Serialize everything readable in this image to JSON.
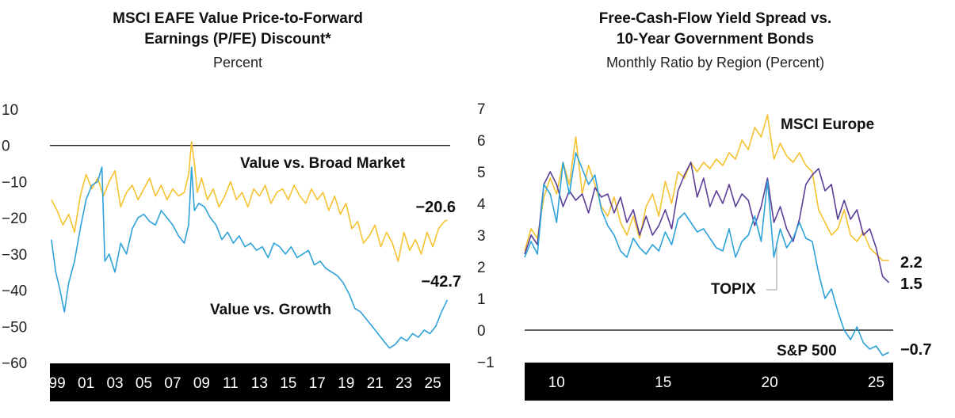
{
  "colors": {
    "gold": "#f5c231",
    "blue": "#2ea2d8",
    "purple": "#5b3f98",
    "axis": "#000000"
  },
  "chart_data": [
    {
      "type": "line",
      "title_line1": "MSCI EAFE Value Price-to-Forward",
      "title_line2": "Earnings (P/FE) Discount*",
      "subtitle": "Percent",
      "ylim": [
        -60,
        10
      ],
      "yticks": [
        10,
        0,
        -10,
        -20,
        -30,
        -40,
        -50,
        -60
      ],
      "ytick_labels": [
        "10",
        "0",
        "−10",
        "−20",
        "−30",
        "−40",
        "−50",
        "−60"
      ],
      "xlim": [
        1998.5,
        2026.2
      ],
      "xticks": [
        1999,
        2001,
        2003,
        2005,
        2007,
        2009,
        2011,
        2013,
        2015,
        2017,
        2019,
        2021,
        2023,
        2025
      ],
      "xtick_labels": [
        "99",
        "01",
        "03",
        "05",
        "07",
        "09",
        "11",
        "13",
        "15",
        "17",
        "19",
        "21",
        "23",
        "25"
      ],
      "series": [
        {
          "name": "Value vs. Broad Market",
          "color": "#f5c231",
          "end_label": "−20.6",
          "x": [
            1998.6,
            1999.0,
            1999.4,
            1999.8,
            2000.2,
            2000.6,
            2001.0,
            2001.4,
            2001.8,
            2002.2,
            2002.6,
            2003.0,
            2003.4,
            2003.8,
            2004.2,
            2004.6,
            2005.0,
            2005.4,
            2005.8,
            2006.2,
            2006.6,
            2007.0,
            2007.4,
            2007.8,
            2008.1,
            2008.3,
            2008.5,
            2008.7,
            2009.0,
            2009.4,
            2009.8,
            2010.2,
            2010.6,
            2011.0,
            2011.4,
            2011.8,
            2012.2,
            2012.6,
            2013.0,
            2013.4,
            2013.8,
            2014.2,
            2014.6,
            2015.0,
            2015.4,
            2015.8,
            2016.2,
            2016.6,
            2017.0,
            2017.4,
            2017.8,
            2018.2,
            2018.6,
            2019.0,
            2019.4,
            2019.8,
            2020.2,
            2020.6,
            2021.0,
            2021.4,
            2021.8,
            2022.2,
            2022.6,
            2023.0,
            2023.4,
            2023.8,
            2024.2,
            2024.6,
            2025.0,
            2025.4,
            2025.8,
            2026.0
          ],
          "y": [
            -15,
            -18,
            -22,
            -19,
            -24,
            -14,
            -8,
            -12,
            -9,
            -14,
            -10,
            -7,
            -17,
            -13,
            -11,
            -15,
            -12,
            -9,
            -14,
            -11,
            -15,
            -12,
            -14,
            -13,
            -8,
            1,
            -5,
            -13,
            -9,
            -15,
            -12,
            -17,
            -14,
            -10,
            -15,
            -13,
            -17,
            -12,
            -14,
            -11,
            -16,
            -13,
            -12,
            -15,
            -11,
            -14,
            -16,
            -12,
            -15,
            -13,
            -18,
            -14,
            -19,
            -16,
            -23,
            -21,
            -27,
            -25,
            -22,
            -28,
            -24,
            -27,
            -32,
            -24,
            -29,
            -26,
            -30,
            -24,
            -28,
            -23,
            -21,
            -20.6
          ]
        },
        {
          "name": "Value vs. Growth",
          "color": "#2ea2d8",
          "end_label": "−42.7",
          "x": [
            1998.6,
            1998.9,
            1999.2,
            1999.5,
            1999.8,
            2000.2,
            2000.6,
            2001.0,
            2001.4,
            2001.8,
            2002.1,
            2002.3,
            2002.6,
            2003.0,
            2003.4,
            2003.8,
            2004.2,
            2004.6,
            2005.0,
            2005.4,
            2005.8,
            2006.2,
            2006.6,
            2007.0,
            2007.4,
            2007.8,
            2008.1,
            2008.3,
            2008.5,
            2008.8,
            2009.2,
            2009.6,
            2010.0,
            2010.4,
            2010.8,
            2011.2,
            2011.6,
            2012.0,
            2012.4,
            2012.8,
            2013.2,
            2013.6,
            2014.0,
            2014.4,
            2014.8,
            2015.2,
            2015.6,
            2016.0,
            2016.4,
            2016.8,
            2017.2,
            2017.6,
            2018.0,
            2018.4,
            2018.8,
            2019.2,
            2019.6,
            2020.0,
            2020.4,
            2020.8,
            2021.2,
            2021.6,
            2022.0,
            2022.4,
            2022.8,
            2023.2,
            2023.6,
            2024.0,
            2024.4,
            2024.8,
            2025.2,
            2025.6,
            2026.0
          ],
          "y": [
            -26,
            -35,
            -40,
            -46,
            -38,
            -32,
            -23,
            -15,
            -11,
            -10,
            -6,
            -32,
            -30,
            -35,
            -27,
            -30,
            -23,
            -20,
            -19,
            -21,
            -22,
            -18,
            -20,
            -22,
            -25,
            -27,
            -22,
            -6,
            -18,
            -16,
            -17,
            -20,
            -22,
            -26,
            -24,
            -27,
            -25,
            -28,
            -27,
            -29,
            -28,
            -31,
            -27,
            -28,
            -30,
            -28,
            -31,
            -30,
            -29,
            -33,
            -32,
            -34,
            -35,
            -36,
            -38,
            -41,
            -45,
            -46,
            -48,
            -50,
            -52,
            -54,
            -56,
            -55,
            -53,
            -54,
            -52,
            -53,
            -51,
            -52,
            -50,
            -46,
            -42.7
          ]
        }
      ]
    },
    {
      "type": "line",
      "title_line1": "Free-Cash-Flow Yield Spread vs.",
      "title_line2": "10-Year Government Bonds",
      "subtitle": "Monthly Ratio by Region (Percent)",
      "ylim": [
        -1,
        7
      ],
      "yticks": [
        7,
        6,
        5,
        4,
        3,
        2,
        1,
        0,
        -1
      ],
      "ytick_labels": [
        "7",
        "6",
        "5",
        "4",
        "3",
        "2",
        "1",
        "0",
        "−1"
      ],
      "xlim": [
        2008.5,
        2025.8
      ],
      "xticks": [
        2010,
        2015,
        2020,
        2025
      ],
      "xtick_labels": [
        "10",
        "15",
        "20",
        "25"
      ],
      "series": [
        {
          "name": "MSCI Europe",
          "color": "#f5c231",
          "end_label": "2.2",
          "x": [
            2008.5,
            2008.8,
            2009.1,
            2009.4,
            2009.7,
            2010.0,
            2010.3,
            2010.6,
            2010.9,
            2011.2,
            2011.5,
            2011.8,
            2012.1,
            2012.4,
            2012.7,
            2013.0,
            2013.3,
            2013.6,
            2013.9,
            2014.2,
            2014.5,
            2014.8,
            2015.1,
            2015.4,
            2015.7,
            2016.0,
            2016.3,
            2016.6,
            2016.9,
            2017.2,
            2017.5,
            2017.8,
            2018.1,
            2018.4,
            2018.7,
            2019.0,
            2019.3,
            2019.6,
            2019.9,
            2020.2,
            2020.5,
            2020.8,
            2021.1,
            2021.4,
            2021.7,
            2022.0,
            2022.3,
            2022.6,
            2022.9,
            2023.2,
            2023.5,
            2023.8,
            2024.1,
            2024.4,
            2024.7,
            2025.0,
            2025.3,
            2025.6
          ],
          "y": [
            2.5,
            3.2,
            2.9,
            4.2,
            4.8,
            4.3,
            5.3,
            4.6,
            6.1,
            4.3,
            5.2,
            4.6,
            3.9,
            3.6,
            4.2,
            3.4,
            3.0,
            3.6,
            2.9,
            3.9,
            4.3,
            3.6,
            4.7,
            4.0,
            5.0,
            4.8,
            5.3,
            5.0,
            5.3,
            5.1,
            5.4,
            5.2,
            5.6,
            5.4,
            6.0,
            5.7,
            6.4,
            6.1,
            6.8,
            5.4,
            5.9,
            5.5,
            5.3,
            5.6,
            5.2,
            5.0,
            3.8,
            3.4,
            3.0,
            3.2,
            3.8,
            3.0,
            2.8,
            3.1,
            2.6,
            2.4,
            2.2,
            2.2
          ]
        },
        {
          "name": "TOPIX",
          "color": "#5b3f98",
          "end_label": "1.5",
          "x": [
            2008.5,
            2008.8,
            2009.1,
            2009.4,
            2009.7,
            2010.0,
            2010.3,
            2010.6,
            2010.9,
            2011.2,
            2011.5,
            2011.8,
            2012.1,
            2012.4,
            2012.7,
            2013.0,
            2013.3,
            2013.6,
            2013.9,
            2014.2,
            2014.5,
            2014.8,
            2015.1,
            2015.4,
            2015.7,
            2016.0,
            2016.3,
            2016.6,
            2016.9,
            2017.2,
            2017.5,
            2017.8,
            2018.1,
            2018.4,
            2018.7,
            2019.0,
            2019.3,
            2019.6,
            2019.9,
            2020.2,
            2020.5,
            2020.8,
            2021.1,
            2021.4,
            2021.7,
            2022.0,
            2022.3,
            2022.6,
            2022.9,
            2023.2,
            2023.5,
            2023.8,
            2024.1,
            2024.4,
            2024.7,
            2025.0,
            2025.3,
            2025.6
          ],
          "y": [
            2.4,
            3.0,
            2.7,
            4.6,
            5.0,
            4.6,
            3.9,
            4.4,
            4.1,
            4.3,
            3.7,
            4.5,
            4.2,
            4.3,
            3.7,
            4.2,
            3.4,
            3.8,
            3.0,
            3.6,
            3.0,
            3.3,
            3.8,
            3.2,
            4.4,
            4.9,
            5.3,
            4.2,
            4.8,
            3.9,
            4.4,
            4.0,
            4.6,
            3.9,
            4.3,
            4.1,
            3.3,
            3.9,
            4.8,
            3.4,
            3.9,
            3.2,
            2.8,
            3.5,
            4.6,
            4.9,
            5.1,
            4.4,
            4.6,
            3.5,
            4.1,
            3.5,
            3.8,
            3.0,
            3.2,
            2.6,
            1.7,
            1.5
          ]
        },
        {
          "name": "S&P 500",
          "color": "#2ea2d8",
          "end_label": "−0.7",
          "x": [
            2008.5,
            2008.8,
            2009.1,
            2009.4,
            2009.7,
            2010.0,
            2010.3,
            2010.6,
            2010.9,
            2011.2,
            2011.5,
            2011.8,
            2012.1,
            2012.4,
            2012.7,
            2013.0,
            2013.3,
            2013.6,
            2013.9,
            2014.2,
            2014.5,
            2014.8,
            2015.1,
            2015.4,
            2015.7,
            2016.0,
            2016.3,
            2016.6,
            2016.9,
            2017.2,
            2017.5,
            2017.8,
            2018.1,
            2018.4,
            2018.7,
            2019.0,
            2019.3,
            2019.6,
            2019.9,
            2020.2,
            2020.5,
            2020.8,
            2021.1,
            2021.4,
            2021.7,
            2022.0,
            2022.3,
            2022.6,
            2022.9,
            2023.2,
            2023.5,
            2023.8,
            2024.1,
            2024.4,
            2024.7,
            2025.0,
            2025.3,
            2025.6
          ],
          "y": [
            2.3,
            2.8,
            2.4,
            4.6,
            4.3,
            3.4,
            5.3,
            4.3,
            5.6,
            5.1,
            4.6,
            4.9,
            3.8,
            3.3,
            3.0,
            2.5,
            2.3,
            2.9,
            2.6,
            2.4,
            2.7,
            2.5,
            3.1,
            2.7,
            3.5,
            3.7,
            3.4,
            3.1,
            3.2,
            2.9,
            2.6,
            2.5,
            3.2,
            2.3,
            2.8,
            3.0,
            3.6,
            2.8,
            4.7,
            2.3,
            3.2,
            2.6,
            2.9,
            3.4,
            2.9,
            2.8,
            1.8,
            1.0,
            1.3,
            0.6,
            0.0,
            -0.3,
            0.1,
            -0.4,
            -0.6,
            -0.5,
            -0.8,
            -0.7
          ]
        }
      ]
    }
  ]
}
